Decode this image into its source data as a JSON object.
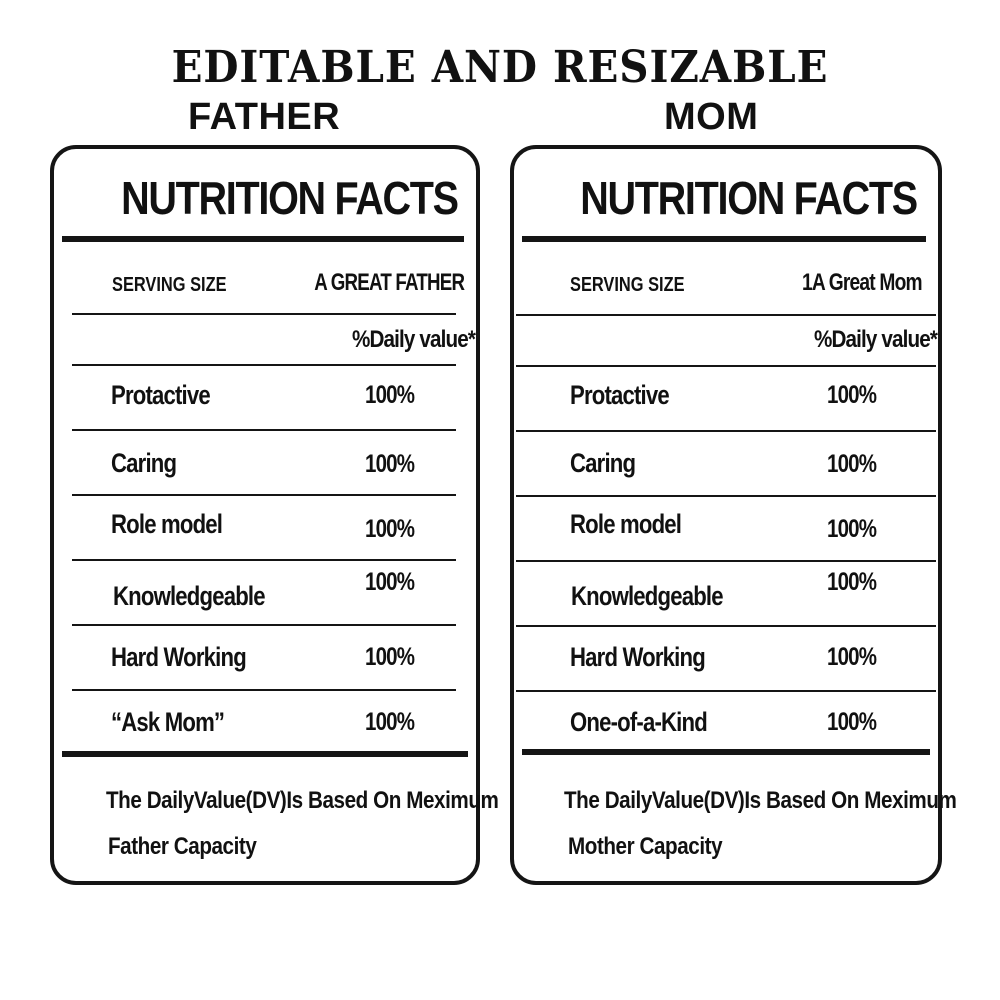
{
  "headline": "EDITABLE AND RESIZABLE",
  "cards": [
    {
      "heading": "FATHER",
      "title": "NUTRITION FACTS",
      "serving_label": "SERVING SIZE",
      "serving_value": "A GREAT FATHER",
      "daily_value_header": "%Daily value*",
      "rows": [
        {
          "label": "Protactive",
          "value": "100%"
        },
        {
          "label": "Caring",
          "value": "100%"
        },
        {
          "label": "Role model",
          "value": "100%"
        },
        {
          "label": "Knowledgeable",
          "value": "100%"
        },
        {
          "label": "Hard Working",
          "value": "100%"
        },
        {
          "label": "“Ask Mom”",
          "value": "100%"
        }
      ],
      "footnote_line1": "The DailyValue(DV)Is Based On Meximum",
      "footnote_line2": "Father Capacity"
    },
    {
      "heading": "MOM",
      "title": "NUTRITION FACTS",
      "serving_label": "SERVING SIZE",
      "serving_value": "1A Great Mom",
      "daily_value_header": "%Daily value*",
      "rows": [
        {
          "label": "Protactive",
          "value": "100%"
        },
        {
          "label": "Caring",
          "value": "100%"
        },
        {
          "label": "Role model",
          "value": "100%"
        },
        {
          "label": "Knowledgeable",
          "value": "100%"
        },
        {
          "label": "Hard Working",
          "value": "100%"
        },
        {
          "label": "One-of-a-Kind",
          "value": "100%"
        }
      ],
      "footnote_line1": "The DailyValue(DV)Is Based On Meximum",
      "footnote_line2": "Mother Capacity"
    }
  ],
  "colors": {
    "ink": "#151515",
    "background": "#ffffff"
  }
}
